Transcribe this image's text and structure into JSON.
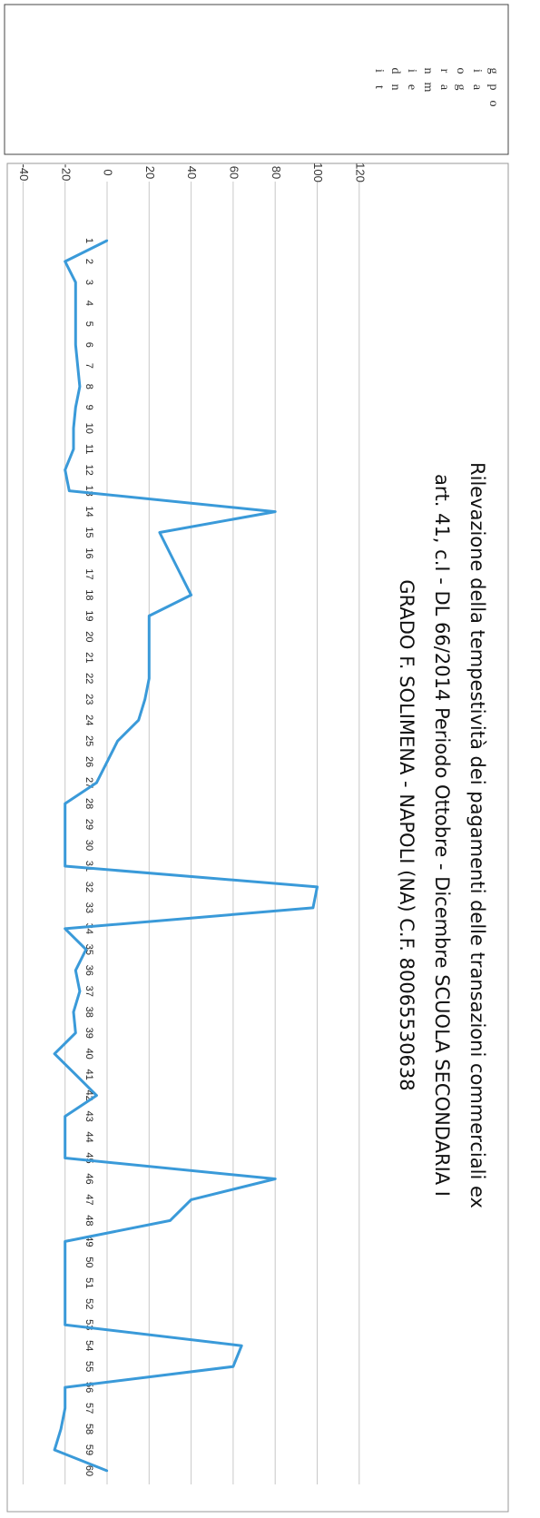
{
  "chart_data": {
    "type": "line",
    "orientation": "rotated-90-clockwise",
    "title_lines": [
      "Rilevazione della tempestività dei pagamenti delle transazioni commerciali ex",
      "art. 41, c.I - DL 66/2014  Periodo Ottobre - Dicembre SCUOLA SECONDARIA I",
      "GRADO F. SOLIMENA - NAPOLI (NA) C.F. 80065530638"
    ],
    "legend_label": "giorni di pagamento",
    "y_ticks": [
      -40,
      -20,
      0,
      20,
      40,
      60,
      80,
      100,
      120
    ],
    "ylim": [
      -40,
      120
    ],
    "x": [
      1,
      2,
      3,
      4,
      5,
      6,
      7,
      8,
      9,
      10,
      11,
      12,
      13,
      14,
      15,
      16,
      17,
      18,
      19,
      20,
      21,
      22,
      23,
      24,
      25,
      26,
      27,
      28,
      29,
      30,
      31,
      32,
      33,
      34,
      35,
      36,
      37,
      38,
      39,
      40,
      41,
      42,
      43,
      44,
      45,
      46,
      47,
      48,
      49,
      50,
      51,
      52,
      53,
      54,
      55,
      56,
      57,
      58,
      59,
      60
    ],
    "series": [
      {
        "color": "#3a9ad9",
        "values": [
          0,
          -20,
          -15,
          -15,
          -15,
          -15,
          -14,
          -13,
          -15,
          -16,
          -16,
          -20,
          -18,
          80,
          25,
          30,
          35,
          40,
          20,
          20,
          20,
          20,
          18,
          15,
          5,
          0,
          -5,
          -20,
          -20,
          -20,
          -20,
          100,
          98,
          -20,
          -10,
          -15,
          -13,
          -16,
          -15,
          -25,
          -15,
          -5,
          -20,
          -20,
          -20,
          80,
          40,
          30,
          -20,
          -20,
          -20,
          -20,
          -20,
          64,
          60,
          -20,
          -20,
          -22,
          -25,
          0
        ]
      }
    ],
    "grid": "horizontal-major",
    "legend_position": "top"
  }
}
